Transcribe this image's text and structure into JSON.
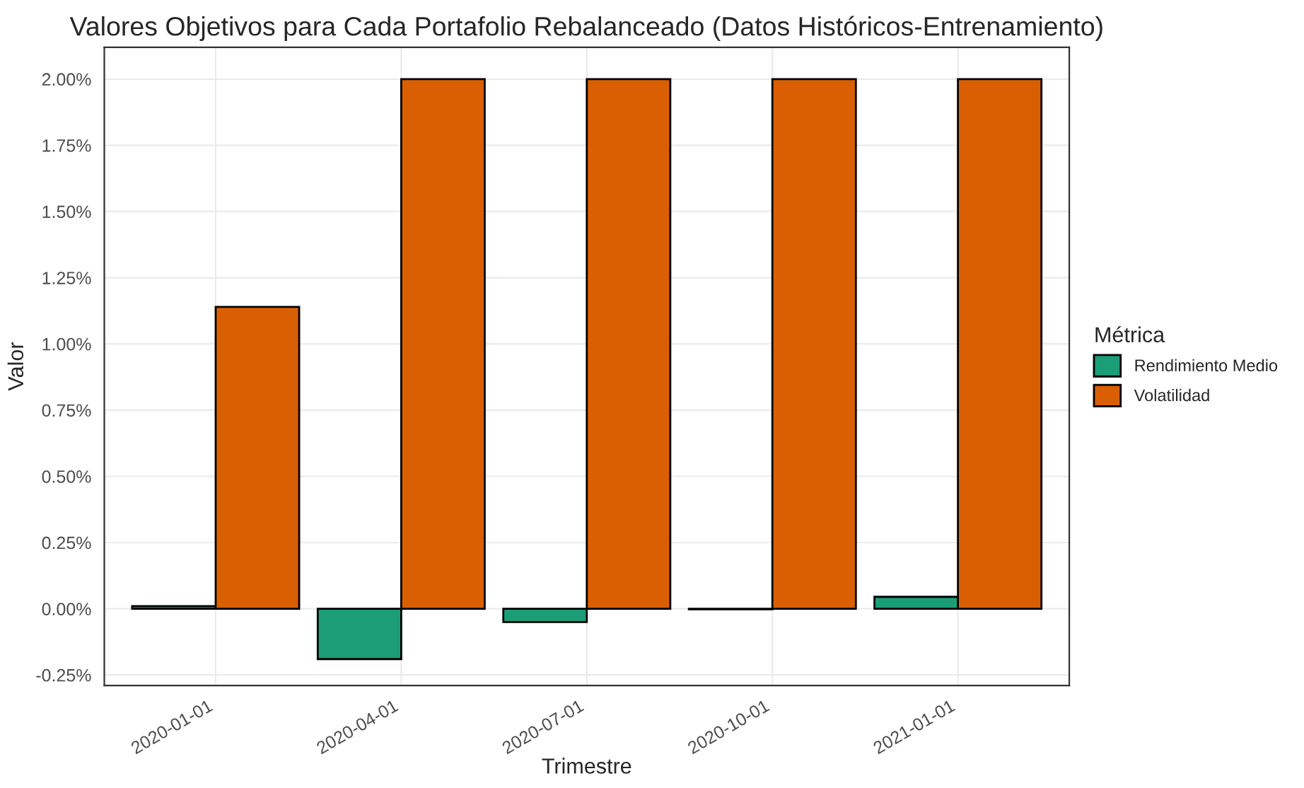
{
  "chart_data": {
    "type": "bar",
    "title": "Valores Objetivos para Cada Portafolio Rebalanceado (Datos Históricos-Entrenamiento)",
    "xlabel": "Trimestre",
    "ylabel": "Valor",
    "legend_title": "Métrica",
    "categories": [
      "2020-01-01",
      "2020-04-01",
      "2020-07-01",
      "2020-10-01",
      "2021-01-01"
    ],
    "series": [
      {
        "name": "Rendimiento Medio",
        "color": "#1b9e77",
        "values": [
          0.01,
          -0.19,
          -0.05,
          -0.002,
          0.045
        ]
      },
      {
        "name": "Volatilidad",
        "color": "#d95f02",
        "values": [
          1.14,
          2.0,
          2.0,
          2.0,
          2.0
        ]
      }
    ],
    "ylim": [
      -0.29,
      2.12
    ],
    "yticks": [
      {
        "value": -0.25,
        "label": "-0.25%"
      },
      {
        "value": 0,
        "label": "0.00%"
      },
      {
        "value": 0.25,
        "label": "0.25%"
      },
      {
        "value": 0.5,
        "label": "0.50%"
      },
      {
        "value": 0.75,
        "label": "0.75%"
      },
      {
        "value": 1.0,
        "label": "1.00%"
      },
      {
        "value": 1.25,
        "label": "1.25%"
      },
      {
        "value": 1.5,
        "label": "1.50%"
      },
      {
        "value": 1.75,
        "label": "1.75%"
      },
      {
        "value": 2.0,
        "label": "2.00%"
      }
    ],
    "grid": true,
    "legend": "right"
  }
}
